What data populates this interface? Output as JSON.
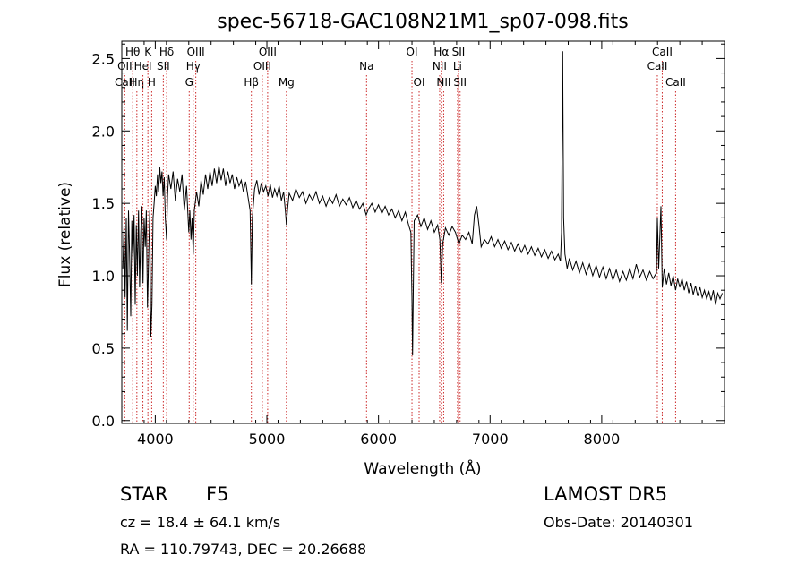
{
  "chart_data": {
    "type": "line",
    "title": "spec-56718-GAC108N21M1_sp07-098.fits",
    "xlabel": "Wavelength (Å)",
    "ylabel": "Flux (relative)",
    "xlim": [
      3700,
      9100
    ],
    "ylim": [
      -0.02,
      2.62
    ],
    "x_ticks": [
      4000,
      5000,
      6000,
      7000,
      8000
    ],
    "x_tick_labels": [
      "4000",
      "5000",
      "6000",
      "7000",
      "8000"
    ],
    "y_ticks": [
      0.0,
      0.5,
      1.0,
      1.5,
      2.0,
      2.5
    ],
    "y_tick_labels": [
      "0.0",
      "0.5",
      "1.0",
      "1.5",
      "2.0",
      "2.5"
    ],
    "grid": false,
    "series": [
      {
        "color": "#000000",
        "points": [
          [
            3710,
            1.05
          ],
          [
            3720,
            1.35
          ],
          [
            3730,
            0.85
          ],
          [
            3740,
            1.4
          ],
          [
            3750,
            0.62
          ],
          [
            3760,
            1.45
          ],
          [
            3770,
            1.15
          ],
          [
            3780,
            0.72
          ],
          [
            3790,
            1.38
          ],
          [
            3800,
            1.1
          ],
          [
            3810,
            1.42
          ],
          [
            3820,
            0.8
          ],
          [
            3830,
            1.35
          ],
          [
            3840,
            1.0
          ],
          [
            3850,
            1.45
          ],
          [
            3860,
            0.92
          ],
          [
            3870,
            1.3
          ],
          [
            3880,
            1.48
          ],
          [
            3890,
            0.95
          ],
          [
            3900,
            1.4
          ],
          [
            3910,
            1.2
          ],
          [
            3920,
            1.45
          ],
          [
            3930,
            0.78
          ],
          [
            3940,
            1.1
          ],
          [
            3950,
            1.45
          ],
          [
            3960,
            0.58
          ],
          [
            3970,
            0.8
          ],
          [
            3980,
            1.4
          ],
          [
            3990,
            1.5
          ],
          [
            4000,
            1.62
          ],
          [
            4010,
            1.55
          ],
          [
            4020,
            1.7
          ],
          [
            4030,
            1.58
          ],
          [
            4040,
            1.75
          ],
          [
            4050,
            1.64
          ],
          [
            4060,
            1.72
          ],
          [
            4070,
            1.55
          ],
          [
            4080,
            1.68
          ],
          [
            4090,
            1.4
          ],
          [
            4101,
            1.25
          ],
          [
            4110,
            1.55
          ],
          [
            4120,
            1.7
          ],
          [
            4140,
            1.6
          ],
          [
            4160,
            1.72
          ],
          [
            4180,
            1.52
          ],
          [
            4200,
            1.67
          ],
          [
            4220,
            1.58
          ],
          [
            4240,
            1.7
          ],
          [
            4260,
            1.45
          ],
          [
            4280,
            1.62
          ],
          [
            4300,
            1.3
          ],
          [
            4310,
            1.45
          ],
          [
            4320,
            1.25
          ],
          [
            4330,
            1.4
          ],
          [
            4340,
            1.15
          ],
          [
            4350,
            1.45
          ],
          [
            4370,
            1.58
          ],
          [
            4390,
            1.48
          ],
          [
            4410,
            1.66
          ],
          [
            4430,
            1.56
          ],
          [
            4450,
            1.7
          ],
          [
            4470,
            1.6
          ],
          [
            4490,
            1.72
          ],
          [
            4510,
            1.62
          ],
          [
            4530,
            1.74
          ],
          [
            4550,
            1.64
          ],
          [
            4570,
            1.76
          ],
          [
            4590,
            1.66
          ],
          [
            4610,
            1.74
          ],
          [
            4630,
            1.62
          ],
          [
            4650,
            1.72
          ],
          [
            4670,
            1.64
          ],
          [
            4690,
            1.7
          ],
          [
            4710,
            1.6
          ],
          [
            4730,
            1.68
          ],
          [
            4750,
            1.62
          ],
          [
            4770,
            1.66
          ],
          [
            4790,
            1.58
          ],
          [
            4810,
            1.65
          ],
          [
            4830,
            1.55
          ],
          [
            4850,
            1.45
          ],
          [
            4861,
            0.94
          ],
          [
            4870,
            1.4
          ],
          [
            4890,
            1.6
          ],
          [
            4910,
            1.66
          ],
          [
            4930,
            1.56
          ],
          [
            4950,
            1.64
          ],
          [
            4970,
            1.58
          ],
          [
            4990,
            1.62
          ],
          [
            5010,
            1.55
          ],
          [
            5030,
            1.63
          ],
          [
            5050,
            1.54
          ],
          [
            5070,
            1.6
          ],
          [
            5090,
            1.55
          ],
          [
            5110,
            1.62
          ],
          [
            5130,
            1.52
          ],
          [
            5150,
            1.58
          ],
          [
            5167,
            1.44
          ],
          [
            5175,
            1.35
          ],
          [
            5185,
            1.46
          ],
          [
            5200,
            1.57
          ],
          [
            5230,
            1.52
          ],
          [
            5260,
            1.6
          ],
          [
            5290,
            1.54
          ],
          [
            5320,
            1.58
          ],
          [
            5350,
            1.5
          ],
          [
            5380,
            1.56
          ],
          [
            5410,
            1.52
          ],
          [
            5440,
            1.58
          ],
          [
            5470,
            1.5
          ],
          [
            5500,
            1.55
          ],
          [
            5530,
            1.48
          ],
          [
            5560,
            1.54
          ],
          [
            5590,
            1.5
          ],
          [
            5620,
            1.56
          ],
          [
            5650,
            1.48
          ],
          [
            5680,
            1.53
          ],
          [
            5710,
            1.49
          ],
          [
            5740,
            1.54
          ],
          [
            5770,
            1.47
          ],
          [
            5800,
            1.52
          ],
          [
            5830,
            1.46
          ],
          [
            5860,
            1.5
          ],
          [
            5890,
            1.42
          ],
          [
            5910,
            1.46
          ],
          [
            5940,
            1.5
          ],
          [
            5970,
            1.44
          ],
          [
            6000,
            1.49
          ],
          [
            6030,
            1.43
          ],
          [
            6060,
            1.48
          ],
          [
            6090,
            1.42
          ],
          [
            6120,
            1.46
          ],
          [
            6150,
            1.4
          ],
          [
            6180,
            1.45
          ],
          [
            6210,
            1.38
          ],
          [
            6240,
            1.44
          ],
          [
            6270,
            1.35
          ],
          [
            6290,
            1.3
          ],
          [
            6300,
            0.85
          ],
          [
            6305,
            0.45
          ],
          [
            6312,
            0.9
          ],
          [
            6320,
            1.38
          ],
          [
            6350,
            1.42
          ],
          [
            6380,
            1.34
          ],
          [
            6410,
            1.4
          ],
          [
            6440,
            1.32
          ],
          [
            6470,
            1.38
          ],
          [
            6500,
            1.3
          ],
          [
            6530,
            1.35
          ],
          [
            6550,
            1.25
          ],
          [
            6563,
            0.95
          ],
          [
            6575,
            1.22
          ],
          [
            6600,
            1.33
          ],
          [
            6630,
            1.28
          ],
          [
            6660,
            1.34
          ],
          [
            6690,
            1.3
          ],
          [
            6720,
            1.22
          ],
          [
            6750,
            1.28
          ],
          [
            6780,
            1.25
          ],
          [
            6810,
            1.3
          ],
          [
            6840,
            1.22
          ],
          [
            6860,
            1.42
          ],
          [
            6880,
            1.48
          ],
          [
            6900,
            1.35
          ],
          [
            6920,
            1.2
          ],
          [
            6950,
            1.25
          ],
          [
            6980,
            1.22
          ],
          [
            7010,
            1.27
          ],
          [
            7040,
            1.2
          ],
          [
            7070,
            1.25
          ],
          [
            7100,
            1.19
          ],
          [
            7130,
            1.24
          ],
          [
            7160,
            1.18
          ],
          [
            7190,
            1.23
          ],
          [
            7220,
            1.17
          ],
          [
            7250,
            1.22
          ],
          [
            7280,
            1.16
          ],
          [
            7310,
            1.21
          ],
          [
            7340,
            1.15
          ],
          [
            7370,
            1.2
          ],
          [
            7400,
            1.14
          ],
          [
            7430,
            1.19
          ],
          [
            7460,
            1.13
          ],
          [
            7490,
            1.18
          ],
          [
            7520,
            1.12
          ],
          [
            7550,
            1.17
          ],
          [
            7580,
            1.11
          ],
          [
            7610,
            1.15
          ],
          [
            7630,
            1.1
          ],
          [
            7640,
            1.3
          ],
          [
            7650,
            2.55
          ],
          [
            7658,
            1.4
          ],
          [
            7670,
            1.15
          ],
          [
            7690,
            1.05
          ],
          [
            7710,
            1.12
          ],
          [
            7740,
            1.04
          ],
          [
            7770,
            1.1
          ],
          [
            7800,
            1.02
          ],
          [
            7830,
            1.09
          ],
          [
            7860,
            1.01
          ],
          [
            7890,
            1.08
          ],
          [
            7920,
            1.0
          ],
          [
            7950,
            1.07
          ],
          [
            7980,
            0.99
          ],
          [
            8010,
            1.06
          ],
          [
            8040,
            0.98
          ],
          [
            8070,
            1.05
          ],
          [
            8100,
            0.97
          ],
          [
            8130,
            1.04
          ],
          [
            8160,
            0.96
          ],
          [
            8190,
            1.03
          ],
          [
            8220,
            0.97
          ],
          [
            8250,
            1.05
          ],
          [
            8280,
            0.98
          ],
          [
            8310,
            1.08
          ],
          [
            8340,
            0.99
          ],
          [
            8370,
            1.04
          ],
          [
            8400,
            0.97
          ],
          [
            8430,
            1.03
          ],
          [
            8460,
            0.98
          ],
          [
            8490,
            1.02
          ],
          [
            8498,
            1.4
          ],
          [
            8510,
            1.05
          ],
          [
            8530,
            1.48
          ],
          [
            8542,
            0.92
          ],
          [
            8560,
            1.05
          ],
          [
            8580,
            0.94
          ],
          [
            8600,
            1.02
          ],
          [
            8620,
            0.93
          ],
          [
            8640,
            1.0
          ],
          [
            8662,
            0.9
          ],
          [
            8680,
            0.98
          ],
          [
            8700,
            0.92
          ],
          [
            8720,
            0.98
          ],
          [
            8740,
            0.9
          ],
          [
            8760,
            0.96
          ],
          [
            8780,
            0.88
          ],
          [
            8800,
            0.95
          ],
          [
            8820,
            0.87
          ],
          [
            8840,
            0.93
          ],
          [
            8860,
            0.86
          ],
          [
            8880,
            0.92
          ],
          [
            8900,
            0.85
          ],
          [
            8920,
            0.9
          ],
          [
            8940,
            0.84
          ],
          [
            8960,
            0.89
          ],
          [
            8980,
            0.83
          ],
          [
            9000,
            0.9
          ],
          [
            9020,
            0.8
          ],
          [
            9040,
            0.88
          ],
          [
            9060,
            0.84
          ],
          [
            9080,
            0.88
          ]
        ]
      }
    ],
    "line_markers": [
      {
        "label": "Hθ",
        "wavelength": 3798,
        "row": 0
      },
      {
        "label": "OII",
        "wavelength": 3727,
        "row": 1
      },
      {
        "label": "CaII",
        "wavelength": 3727,
        "row": 2
      },
      {
        "label": "Hη",
        "wavelength": 3835,
        "row": 2
      },
      {
        "label": "HeI",
        "wavelength": 3889,
        "row": 1
      },
      {
        "label": "K",
        "wavelength": 3934,
        "row": 0
      },
      {
        "label": "H",
        "wavelength": 3968,
        "row": 2
      },
      {
        "label": "Hδ",
        "wavelength": 4102,
        "row": 0
      },
      {
        "label": "SII",
        "wavelength": 4072,
        "row": 1
      },
      {
        "label": "OIII",
        "wavelength": 4363,
        "row": 0
      },
      {
        "label": "Hγ",
        "wavelength": 4340,
        "row": 1
      },
      {
        "label": "G",
        "wavelength": 4304,
        "row": 2
      },
      {
        "label": "Hβ",
        "wavelength": 4861,
        "row": 2
      },
      {
        "label": "OIII",
        "wavelength": 5007,
        "row": 0
      },
      {
        "label": "OIII",
        "wavelength": 4959,
        "row": 1
      },
      {
        "label": "Mg",
        "wavelength": 5175,
        "row": 2
      },
      {
        "label": "Na",
        "wavelength": 5893,
        "row": 1
      },
      {
        "label": "OI",
        "wavelength": 6300,
        "row": 0
      },
      {
        "label": "OI",
        "wavelength": 6364,
        "row": 2
      },
      {
        "label": "Hα",
        "wavelength": 6563,
        "row": 0
      },
      {
        "label": "NII",
        "wavelength": 6548,
        "row": 1
      },
      {
        "label": "NII",
        "wavelength": 6584,
        "row": 2
      },
      {
        "label": "SII",
        "wavelength": 6717,
        "row": 0
      },
      {
        "label": "Li",
        "wavelength": 6708,
        "row": 1
      },
      {
        "label": "SII",
        "wavelength": 6731,
        "row": 2
      },
      {
        "label": "CaII",
        "wavelength": 8542,
        "row": 0
      },
      {
        "label": "CaII",
        "wavelength": 8498,
        "row": 1
      },
      {
        "label": "CaII",
        "wavelength": 8662,
        "row": 2
      }
    ]
  },
  "info": {
    "object_class": "STAR",
    "subclass": "F5",
    "survey": "LAMOST  DR5",
    "redshift": "cz = 18.4 ± 64.1 km/s",
    "obs_date": "Obs-Date: 20140301",
    "coords": "RA = 110.79743, DEC =  20.26688"
  }
}
